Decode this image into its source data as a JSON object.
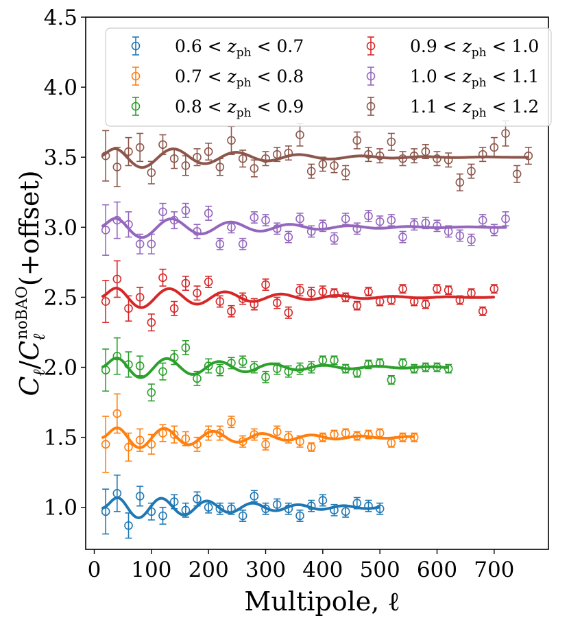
{
  "chart_data": {
    "type": "scatter",
    "title": "",
    "xlabel": "Multipole, ℓ",
    "ylabel_parts": {
      "c1": "C",
      "sub1": "ℓ",
      "slash": "/",
      "c2": "C",
      "sub2": "ℓ",
      "sup2": "noBAO",
      "rest": "(+offset)"
    },
    "xlim": [
      -15,
      795
    ],
    "ylim": [
      0.7,
      4.5
    ],
    "xticks": [
      0,
      100,
      200,
      300,
      400,
      500,
      600,
      700
    ],
    "xtick_labels": [
      "0",
      "100",
      "200",
      "300",
      "400",
      "500",
      "600",
      "700"
    ],
    "yticks": [
      1.0,
      1.5,
      2.0,
      2.5,
      3.0,
      3.5,
      4.0,
      4.5
    ],
    "ytick_labels": [
      "1.0",
      "1.5",
      "2.0",
      "2.5",
      "3.0",
      "3.5",
      "4.0",
      "4.5"
    ],
    "legend_position": "top",
    "series": [
      {
        "name": "0.6 < z_ph < 0.7",
        "label": {
          "a": "0.6 < ",
          "z": "z",
          "sub": "ph",
          "b": " < 0.7"
        },
        "color": "#1f77b4",
        "offset": 1.0,
        "x": [
          20,
          40,
          60,
          80,
          100,
          120,
          140,
          160,
          180,
          200,
          220,
          240,
          260,
          280,
          300,
          320,
          340,
          360,
          380,
          400,
          420,
          440,
          460,
          480,
          500
        ],
        "y": [
          0.97,
          1.1,
          0.87,
          1.08,
          0.97,
          0.94,
          1.04,
          0.98,
          1.06,
          1.0,
          0.99,
          0.99,
          0.94,
          1.08,
          0.99,
          1.02,
          0.99,
          0.94,
          1.01,
          1.05,
          0.98,
          0.97,
          1.03,
          1.01,
          0.99
        ],
        "err": [
          0.16,
          0.13,
          0.09,
          0.07,
          0.06,
          0.06,
          0.05,
          0.05,
          0.05,
          0.04,
          0.04,
          0.04,
          0.04,
          0.04,
          0.04,
          0.04,
          0.04,
          0.04,
          0.04,
          0.04,
          0.04,
          0.04,
          0.04,
          0.04,
          0.04
        ],
        "model_x_end": 500
      },
      {
        "name": "0.7 < z_ph < 0.8",
        "label": {
          "a": "0.7 < ",
          "z": "z",
          "sub": "ph",
          "b": " < 0.8"
        },
        "color": "#ff7f0e",
        "offset": 1.5,
        "x": [
          20,
          40,
          60,
          80,
          100,
          120,
          140,
          160,
          180,
          200,
          220,
          240,
          260,
          280,
          300,
          320,
          340,
          360,
          380,
          400,
          420,
          440,
          460,
          480,
          500,
          520,
          540,
          560
        ],
        "y": [
          1.45,
          1.67,
          1.43,
          1.48,
          1.45,
          1.53,
          1.52,
          1.49,
          1.45,
          1.53,
          1.53,
          1.61,
          1.47,
          1.52,
          1.45,
          1.54,
          1.5,
          1.47,
          1.43,
          1.5,
          1.52,
          1.53,
          1.51,
          1.52,
          1.53,
          1.46,
          1.5,
          1.5
        ],
        "err": [
          0.2,
          0.14,
          0.1,
          0.08,
          0.07,
          0.06,
          0.06,
          0.05,
          0.05,
          0.05,
          0.05,
          0.04,
          0.04,
          0.04,
          0.04,
          0.04,
          0.04,
          0.04,
          0.03,
          0.03,
          0.03,
          0.03,
          0.03,
          0.03,
          0.03,
          0.03,
          0.03,
          0.03
        ],
        "model_x_end": 560
      },
      {
        "name": "0.8 < z_ph < 0.9",
        "label": {
          "a": "0.8 < ",
          "z": "z",
          "sub": "ph",
          "b": " < 0.9"
        },
        "color": "#2ca02c",
        "offset": 2.0,
        "x": [
          20,
          40,
          60,
          80,
          100,
          120,
          140,
          160,
          180,
          200,
          220,
          240,
          260,
          280,
          300,
          320,
          340,
          360,
          380,
          400,
          420,
          440,
          460,
          480,
          500,
          520,
          540,
          560,
          580,
          600,
          620
        ],
        "y": [
          1.98,
          2.08,
          2.02,
          2.01,
          1.82,
          1.97,
          2.07,
          2.14,
          1.92,
          2.01,
          1.98,
          2.03,
          2.04,
          2.0,
          1.93,
          1.99,
          1.97,
          1.99,
          2.0,
          2.05,
          2.05,
          1.99,
          1.96,
          2.02,
          2.03,
          1.91,
          2.03,
          1.99,
          2.0,
          2.0,
          1.99
        ],
        "err": [
          0.15,
          0.13,
          0.09,
          0.07,
          0.06,
          0.06,
          0.05,
          0.05,
          0.05,
          0.05,
          0.04,
          0.04,
          0.04,
          0.04,
          0.04,
          0.04,
          0.04,
          0.04,
          0.04,
          0.03,
          0.03,
          0.03,
          0.03,
          0.03,
          0.03,
          0.03,
          0.03,
          0.03,
          0.03,
          0.03,
          0.03
        ],
        "model_x_end": 620
      },
      {
        "name": "0.9 < z_ph < 1.0",
        "label": {
          "a": "0.9 < ",
          "z": "z",
          "sub": "ph",
          "b": " < 1.0"
        },
        "color": "#d62728",
        "offset": 2.5,
        "x": [
          20,
          40,
          60,
          80,
          100,
          120,
          140,
          160,
          180,
          200,
          220,
          240,
          260,
          280,
          300,
          320,
          340,
          360,
          380,
          400,
          420,
          440,
          460,
          480,
          500,
          520,
          540,
          560,
          580,
          600,
          620,
          640,
          660,
          680,
          700
        ],
        "y": [
          2.47,
          2.63,
          2.42,
          2.5,
          2.32,
          2.64,
          2.42,
          2.6,
          2.53,
          2.61,
          2.47,
          2.4,
          2.49,
          2.45,
          2.59,
          2.46,
          2.39,
          2.55,
          2.53,
          2.54,
          2.53,
          2.5,
          2.44,
          2.54,
          2.47,
          2.48,
          2.56,
          2.47,
          2.45,
          2.56,
          2.55,
          2.48,
          2.53,
          2.4,
          2.56
        ],
        "err": [
          0.15,
          0.13,
          0.09,
          0.07,
          0.06,
          0.06,
          0.05,
          0.05,
          0.05,
          0.04,
          0.04,
          0.04,
          0.04,
          0.04,
          0.04,
          0.04,
          0.04,
          0.04,
          0.04,
          0.04,
          0.03,
          0.03,
          0.03,
          0.03,
          0.03,
          0.03,
          0.03,
          0.03,
          0.03,
          0.03,
          0.03,
          0.03,
          0.03,
          0.03,
          0.03
        ],
        "model_x_end": 700
      },
      {
        "name": "1.0 < z_ph < 1.1",
        "label": {
          "a": "1.0 < ",
          "z": "z",
          "sub": "ph",
          "b": " < 1.1"
        },
        "color": "#9467bd",
        "offset": 3.0,
        "x": [
          20,
          40,
          60,
          80,
          100,
          120,
          140,
          160,
          180,
          200,
          220,
          240,
          260,
          280,
          300,
          320,
          340,
          360,
          380,
          400,
          420,
          440,
          460,
          480,
          500,
          520,
          540,
          560,
          580,
          600,
          620,
          640,
          660,
          680,
          700,
          720
        ],
        "y": [
          2.98,
          3.05,
          3.02,
          2.88,
          2.88,
          3.11,
          3.05,
          3.12,
          2.97,
          3.1,
          2.88,
          3.0,
          2.88,
          3.07,
          3.05,
          2.99,
          2.93,
          3.06,
          2.97,
          3.01,
          2.92,
          3.06,
          2.99,
          3.08,
          3.04,
          3.05,
          2.93,
          3.02,
          3.03,
          3.01,
          2.97,
          2.94,
          2.91,
          3.05,
          2.98,
          3.06
        ],
        "err": [
          0.18,
          0.13,
          0.09,
          0.07,
          0.07,
          0.06,
          0.06,
          0.05,
          0.05,
          0.05,
          0.04,
          0.04,
          0.04,
          0.04,
          0.04,
          0.04,
          0.04,
          0.04,
          0.04,
          0.04,
          0.04,
          0.04,
          0.04,
          0.04,
          0.04,
          0.04,
          0.04,
          0.04,
          0.04,
          0.04,
          0.04,
          0.04,
          0.04,
          0.04,
          0.04,
          0.05
        ],
        "model_x_end": 720
      },
      {
        "name": "1.1 < z_ph < 1.2",
        "label": {
          "a": "1.1 < ",
          "z": "z",
          "sub": "ph",
          "b": " < 1.2"
        },
        "color": "#8c564b",
        "offset": 3.5,
        "x": [
          20,
          40,
          60,
          80,
          100,
          120,
          140,
          160,
          180,
          200,
          220,
          240,
          260,
          280,
          300,
          320,
          340,
          360,
          380,
          400,
          420,
          440,
          460,
          480,
          500,
          520,
          540,
          560,
          580,
          600,
          620,
          640,
          660,
          680,
          700,
          720,
          740,
          760
        ],
        "y": [
          3.51,
          3.43,
          3.54,
          3.57,
          3.39,
          3.59,
          3.49,
          3.44,
          3.5,
          3.54,
          3.43,
          3.62,
          3.49,
          3.42,
          3.49,
          3.52,
          3.53,
          3.66,
          3.4,
          3.45,
          3.44,
          3.39,
          3.62,
          3.52,
          3.51,
          3.61,
          3.49,
          3.51,
          3.54,
          3.49,
          3.48,
          3.32,
          3.4,
          3.52,
          3.57,
          3.67,
          3.38,
          3.51
        ],
        "err": [
          0.18,
          0.14,
          0.1,
          0.1,
          0.08,
          0.07,
          0.07,
          0.07,
          0.06,
          0.06,
          0.06,
          0.1,
          0.06,
          0.06,
          0.05,
          0.05,
          0.05,
          0.08,
          0.05,
          0.05,
          0.05,
          0.05,
          0.06,
          0.05,
          0.05,
          0.06,
          0.05,
          0.05,
          0.05,
          0.05,
          0.05,
          0.06,
          0.05,
          0.05,
          0.07,
          0.09,
          0.06,
          0.06
        ],
        "model_x_end": 760
      }
    ]
  }
}
